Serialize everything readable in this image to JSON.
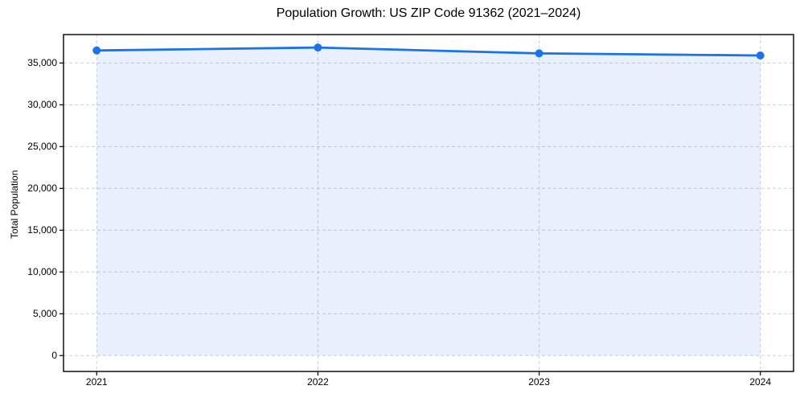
{
  "chart_data": {
    "type": "line",
    "title": "Population Growth: US ZIP Code 91362 (2021–2024)",
    "xlabel": "",
    "ylabel": "Total Population",
    "x": [
      2021,
      2022,
      2023,
      2024
    ],
    "categories": [
      "2021",
      "2022",
      "2023",
      "2024"
    ],
    "series": [
      {
        "name": "Total Population",
        "values": [
          36500,
          36850,
          36150,
          35900
        ]
      }
    ],
    "yticks": [
      0,
      5000,
      10000,
      15000,
      20000,
      25000,
      30000,
      35000
    ],
    "ytick_labels": [
      "0",
      "5,000",
      "10,000",
      "15,000",
      "20,000",
      "25,000",
      "30,000",
      "35,000"
    ],
    "xlim": [
      2020.85,
      2024.15
    ],
    "ylim": [
      -1900,
      38400
    ],
    "grid": true,
    "grid_style": "dashed",
    "legend": false,
    "area_fill_to_zero": true,
    "marker": "circle",
    "fill_opacity": 0.1,
    "colors": {
      "line": "#1a73e8",
      "fill": "#1a73e8",
      "grid": "#d0d0d0",
      "axis": "#000000",
      "text": "#000000",
      "background": "#ffffff"
    }
  }
}
